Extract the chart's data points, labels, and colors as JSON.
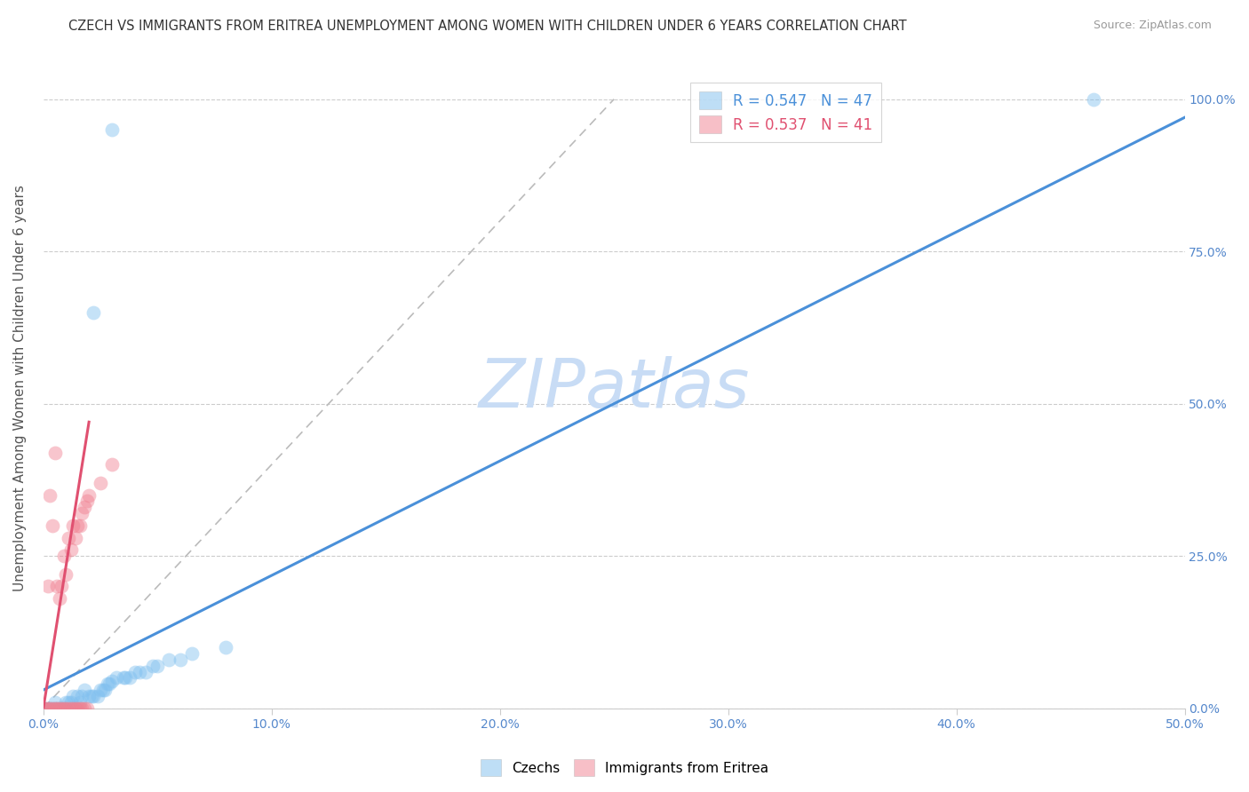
{
  "title": "CZECH VS IMMIGRANTS FROM ERITREA UNEMPLOYMENT AMONG WOMEN WITH CHILDREN UNDER 6 YEARS CORRELATION CHART",
  "source": "Source: ZipAtlas.com",
  "ylabel_left": "Unemployment Among Women with Children Under 6 years",
  "xmin": 0.0,
  "xmax": 0.5,
  "ymin": 0.0,
  "ymax": 1.05,
  "watermark": "ZIPatlas",
  "watermark_color": "#c8dcf5",
  "background_color": "#ffffff",
  "grid_color": "#cccccc",
  "czechs_color": "#7fbfef",
  "eritrea_color": "#f08090",
  "czechs_scatter": [
    [
      0.0,
      0.0
    ],
    [
      0.001,
      0.0
    ],
    [
      0.002,
      0.0
    ],
    [
      0.003,
      0.0
    ],
    [
      0.004,
      0.0
    ],
    [
      0.005,
      0.0
    ],
    [
      0.005,
      0.01
    ],
    [
      0.006,
      0.0
    ],
    [
      0.007,
      0.0
    ],
    [
      0.008,
      0.0
    ],
    [
      0.009,
      0.0
    ],
    [
      0.01,
      0.0
    ],
    [
      0.01,
      0.01
    ],
    [
      0.011,
      0.01
    ],
    [
      0.012,
      0.01
    ],
    [
      0.013,
      0.02
    ],
    [
      0.014,
      0.0
    ],
    [
      0.015,
      0.02
    ],
    [
      0.016,
      0.01
    ],
    [
      0.017,
      0.02
    ],
    [
      0.018,
      0.03
    ],
    [
      0.02,
      0.02
    ],
    [
      0.021,
      0.02
    ],
    [
      0.022,
      0.02
    ],
    [
      0.024,
      0.02
    ],
    [
      0.025,
      0.03
    ],
    [
      0.026,
      0.03
    ],
    [
      0.027,
      0.03
    ],
    [
      0.028,
      0.04
    ],
    [
      0.029,
      0.04
    ],
    [
      0.03,
      0.045
    ],
    [
      0.032,
      0.05
    ],
    [
      0.035,
      0.05
    ],
    [
      0.036,
      0.05
    ],
    [
      0.038,
      0.05
    ],
    [
      0.04,
      0.06
    ],
    [
      0.042,
      0.06
    ],
    [
      0.045,
      0.06
    ],
    [
      0.048,
      0.07
    ],
    [
      0.05,
      0.07
    ],
    [
      0.055,
      0.08
    ],
    [
      0.06,
      0.08
    ],
    [
      0.065,
      0.09
    ],
    [
      0.08,
      0.1
    ],
    [
      0.022,
      0.65
    ],
    [
      0.03,
      0.95
    ],
    [
      0.46,
      1.0
    ]
  ],
  "eritrea_scatter": [
    [
      0.0,
      0.0
    ],
    [
      0.001,
      0.0
    ],
    [
      0.002,
      0.0
    ],
    [
      0.003,
      0.0
    ],
    [
      0.004,
      0.0
    ],
    [
      0.005,
      0.0
    ],
    [
      0.006,
      0.0
    ],
    [
      0.007,
      0.0
    ],
    [
      0.008,
      0.0
    ],
    [
      0.009,
      0.0
    ],
    [
      0.01,
      0.0
    ],
    [
      0.011,
      0.0
    ],
    [
      0.012,
      0.0
    ],
    [
      0.013,
      0.0
    ],
    [
      0.014,
      0.0
    ],
    [
      0.015,
      0.0
    ],
    [
      0.016,
      0.0
    ],
    [
      0.017,
      0.0
    ],
    [
      0.018,
      0.0
    ],
    [
      0.019,
      0.0
    ],
    [
      0.002,
      0.2
    ],
    [
      0.003,
      0.35
    ],
    [
      0.004,
      0.3
    ],
    [
      0.005,
      0.42
    ],
    [
      0.006,
      0.2
    ],
    [
      0.007,
      0.18
    ],
    [
      0.008,
      0.2
    ],
    [
      0.009,
      0.25
    ],
    [
      0.01,
      0.22
    ],
    [
      0.011,
      0.28
    ],
    [
      0.012,
      0.26
    ],
    [
      0.013,
      0.3
    ],
    [
      0.014,
      0.28
    ],
    [
      0.015,
      0.3
    ],
    [
      0.016,
      0.3
    ],
    [
      0.017,
      0.32
    ],
    [
      0.018,
      0.33
    ],
    [
      0.019,
      0.34
    ],
    [
      0.02,
      0.35
    ],
    [
      0.025,
      0.37
    ],
    [
      0.03,
      0.4
    ]
  ],
  "czechs_line_x": [
    0.0,
    0.5
  ],
  "czechs_line_y": [
    0.03,
    0.97
  ],
  "eritrea_line_x": [
    0.0,
    0.02
  ],
  "eritrea_line_y": [
    0.0,
    0.47
  ],
  "diag_line_x": [
    0.0,
    0.25
  ],
  "diag_line_y": [
    0.0,
    1.0
  ],
  "legend_label_czech": "R = 0.547   N = 47",
  "legend_label_eritrea": "R = 0.537   N = 41",
  "legend_text_czech_color": "#4a90d9",
  "legend_text_eritrea_color": "#e05070",
  "bottom_legend_czech": "Czechs",
  "bottom_legend_eritrea": "Immigrants from Eritrea"
}
